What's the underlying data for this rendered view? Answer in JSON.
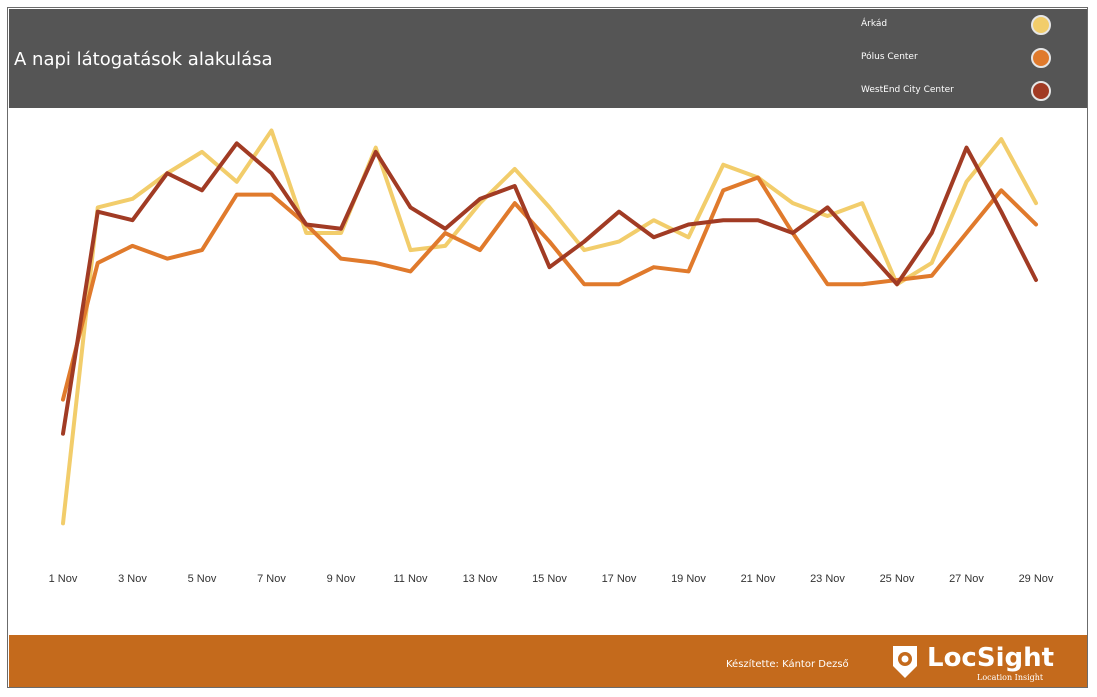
{
  "header": {
    "title": "A napi látogatások alakulása"
  },
  "legend": [
    {
      "label": "Árkád",
      "color": "#f2cd6b"
    },
    {
      "label": "Pólus Center",
      "color": "#e07a2c"
    },
    {
      "label": "WestEnd City Center",
      "color": "#a13b24"
    }
  ],
  "footer": {
    "credit": "Készítette: Kántor Dezső",
    "logo_name": "LocSight",
    "logo_tagline": "Location Insight",
    "logo_icon": "map-pin-icon"
  },
  "colors": {
    "header_bg": "#555555",
    "footer_bg": "#c46a1c"
  },
  "chart_data": {
    "type": "line",
    "title": "A napi látogatások alakulása",
    "x": [
      1,
      2,
      3,
      4,
      5,
      6,
      7,
      8,
      9,
      10,
      11,
      12,
      13,
      14,
      15,
      16,
      17,
      18,
      19,
      20,
      21,
      22,
      23,
      24,
      25,
      26,
      27,
      28,
      29
    ],
    "tick_labels": [
      "1 Nov",
      "3 Nov",
      "5 Nov",
      "7 Nov",
      "9 Nov",
      "11 Nov",
      "13 Nov",
      "15 Nov",
      "17 Nov",
      "19 Nov",
      "21 Nov",
      "23 Nov",
      "25 Nov",
      "27 Nov",
      "29 Nov"
    ],
    "tick_days": [
      1,
      3,
      5,
      7,
      9,
      11,
      13,
      15,
      17,
      19,
      21,
      23,
      25,
      27,
      29
    ],
    "y_axis_shown": false,
    "ylim": [
      0,
      100
    ],
    "grid": false,
    "legend_position": "top-right",
    "series": [
      {
        "name": "Árkád",
        "color": "#f2cd6b",
        "values": [
          6,
          80,
          82,
          88,
          93,
          86,
          98,
          74,
          74,
          94,
          70,
          71,
          81,
          89,
          80,
          70,
          72,
          77,
          73,
          90,
          87,
          81,
          78,
          81,
          62,
          67,
          86,
          96,
          81
        ]
      },
      {
        "name": "Pólus Center",
        "color": "#e07a2c",
        "values": [
          35,
          67,
          71,
          68,
          70,
          83,
          83,
          76,
          68,
          67,
          65,
          74,
          70,
          81,
          72,
          62,
          62,
          66,
          65,
          84,
          87,
          74,
          62,
          62,
          63,
          64,
          74,
          84,
          76
        ]
      },
      {
        "name": "WestEnd City Center",
        "color": "#a13b24",
        "values": [
          27,
          79,
          77,
          88,
          84,
          95,
          88,
          76,
          75,
          93,
          80,
          75,
          82,
          85,
          66,
          72,
          79,
          73,
          76,
          77,
          77,
          74,
          80,
          71,
          62,
          74,
          94,
          79,
          63
        ]
      }
    ]
  }
}
